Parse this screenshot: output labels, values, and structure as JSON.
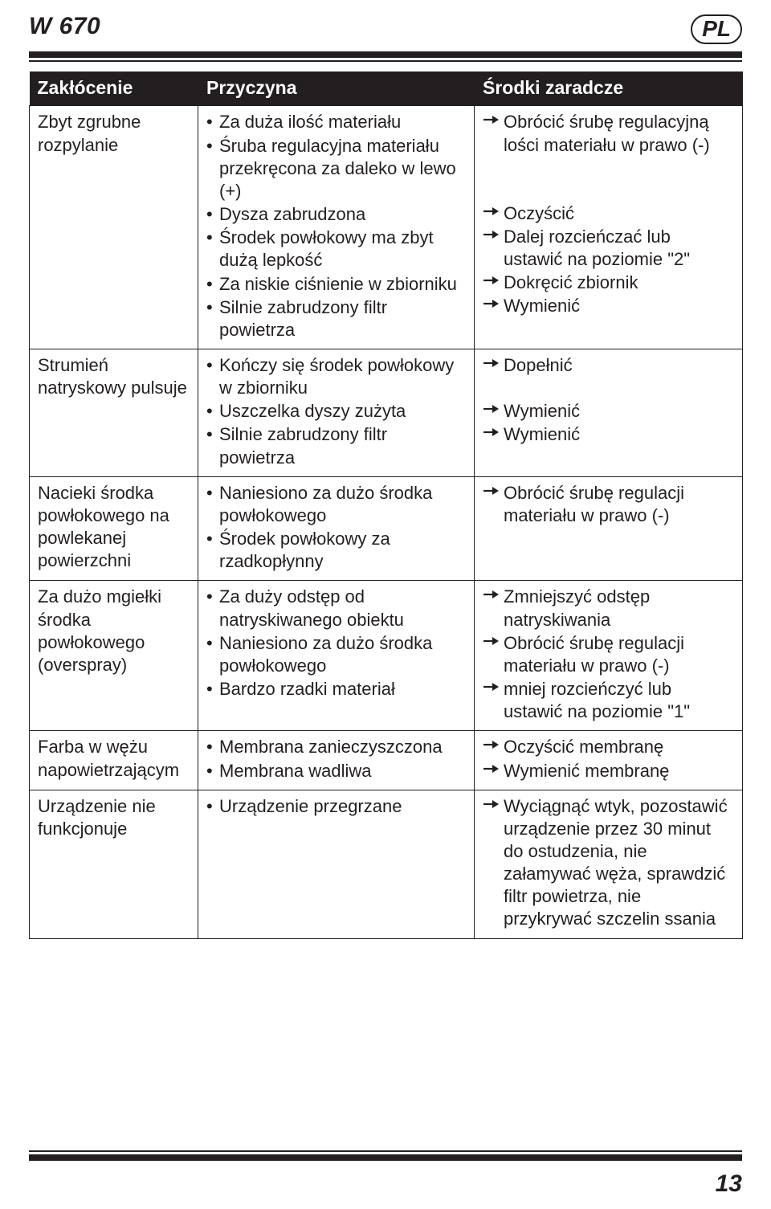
{
  "doc": {
    "model": "W 670",
    "lang": "PL",
    "page_number": "13"
  },
  "table": {
    "headers": [
      "Zakłócenie",
      "Przyczyna",
      "Środki zaradcze"
    ],
    "rows": [
      {
        "issue": "Zbyt zgrubne rozpylanie",
        "causes": [
          "Za duża ilość materiału",
          "Śruba regulacyjna materiału przekręcona za daleko w lewo (+)",
          "Dysza zabrudzona",
          "Środek powłokowy ma zbyt dużą lepkość",
          "Za niskie ciśnienie w zbiorniku",
          "Silnie zabrudzony filtr powietrza"
        ],
        "actions": [
          {
            "t": "Obrócić śrubę regulacyjną lości materiału w prawo (-)",
            "gap": "two"
          },
          {
            "t": "Oczyścić"
          },
          {
            "t": "Dalej rozcieńczać lub ustawić na poziomie \"2\""
          },
          {
            "t": "Dokręcić zbiornik"
          },
          {
            "t": "Wymienić"
          }
        ]
      },
      {
        "issue": "Strumień natryskowy pulsuje",
        "causes": [
          "Kończy się środek powłokowy w zbiorniku",
          "Uszczelka dyszy zużyta",
          "Silnie zabrudzony filtr powietrza"
        ],
        "actions": [
          {
            "t": "Dopełnić",
            "gap": "one"
          },
          {
            "t": "Wymienić"
          },
          {
            "t": "Wymienić"
          }
        ]
      },
      {
        "issue": "Nacieki środka powłokowego na powlekanej powierzchni",
        "causes": [
          "Naniesiono za dużo środka powłokowego",
          "Środek powłokowy za rzadkopłynny"
        ],
        "actions": [
          {
            "t": "Obrócić śrubę regulacji materiału w prawo (-)"
          }
        ]
      },
      {
        "issue": "Za dużo mgiełki środka powłokowego (overspray)",
        "causes": [
          "Za duży odstęp od natryskiwanego obiektu",
          "Naniesiono za dużo środka powłokowego",
          "Bardzo rzadki materiał"
        ],
        "actions": [
          {
            "t": "Zmniejszyć odstęp natryskiwania"
          },
          {
            "t": "Obrócić śrubę regulacji materiału w prawo (-)"
          },
          {
            "t": "mniej rozcieńczyć lub ustawić na poziomie \"1\""
          }
        ]
      },
      {
        "issue": "Farba w wężu napowietrzającym",
        "causes": [
          "Membrana zanieczyszczona",
          "Membrana wadliwa"
        ],
        "actions": [
          {
            "t": "Oczyścić membranę"
          },
          {
            "t": "Wymienić membranę"
          }
        ]
      },
      {
        "issue": "Urządzenie nie funkcjonuje",
        "causes": [
          "Urządzenie przegrzane"
        ],
        "actions": [
          {
            "t": "Wyciągnąć wtyk, pozostawić urządzenie przez 30 minut do ostudzenia, nie załamywać węża, sprawdzić filtr powietrza, nie przykrywać szczelin ssania"
          }
        ]
      }
    ]
  }
}
